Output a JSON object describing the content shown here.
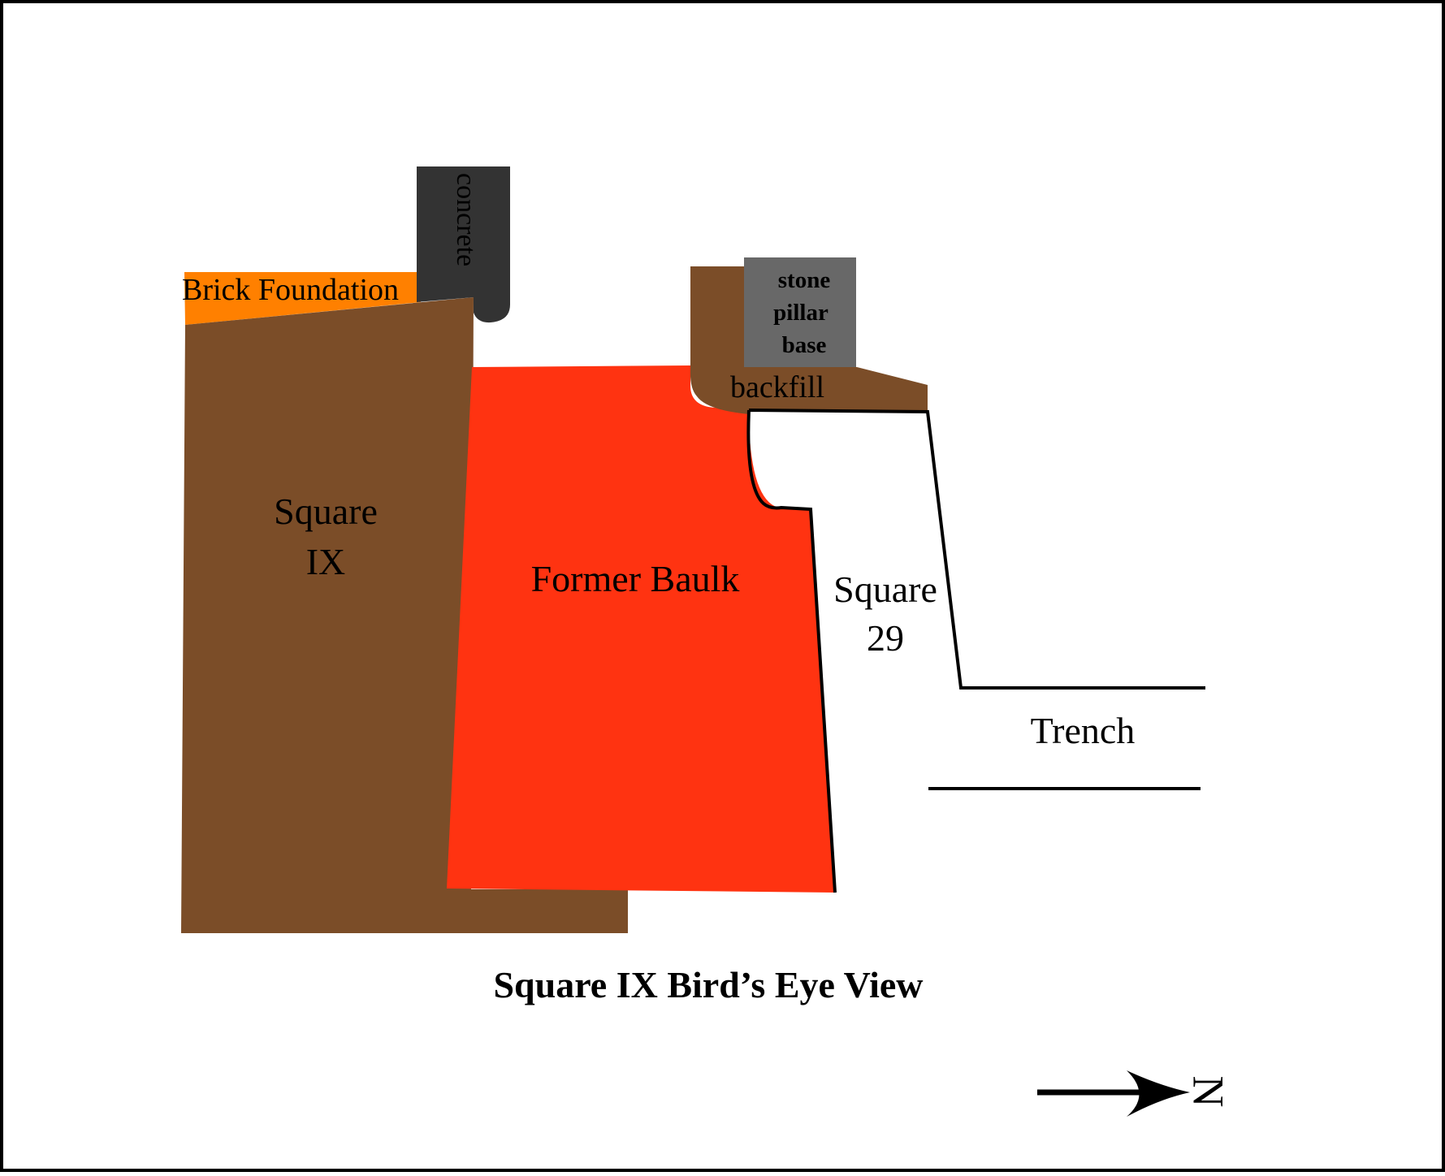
{
  "title": "Square IX Bird’s Eye View",
  "labels": {
    "brick_foundation": "Brick Foundation",
    "concrete": "concrete",
    "stone_pillar_line1": "stone",
    "stone_pillar_line2": "pillar",
    "stone_pillar_line3": "base",
    "backfill": "backfill",
    "square_ix_line1": "Square",
    "square_ix_line2": "IX",
    "former_baulk": "Former Baulk",
    "square_29_line1": "Square",
    "square_29_line2": "29",
    "trench": "Trench",
    "north": "N"
  },
  "colors": {
    "square_ix": "#7b4d28",
    "brick_foundation": "#ff8000",
    "concrete": "#333333",
    "stone_pillar_base": "#686868",
    "former_baulk": "#ff3311",
    "backfill": "#7b4d28",
    "outline": "#000000"
  },
  "north_arrow_icon": "arrow-right-icon"
}
